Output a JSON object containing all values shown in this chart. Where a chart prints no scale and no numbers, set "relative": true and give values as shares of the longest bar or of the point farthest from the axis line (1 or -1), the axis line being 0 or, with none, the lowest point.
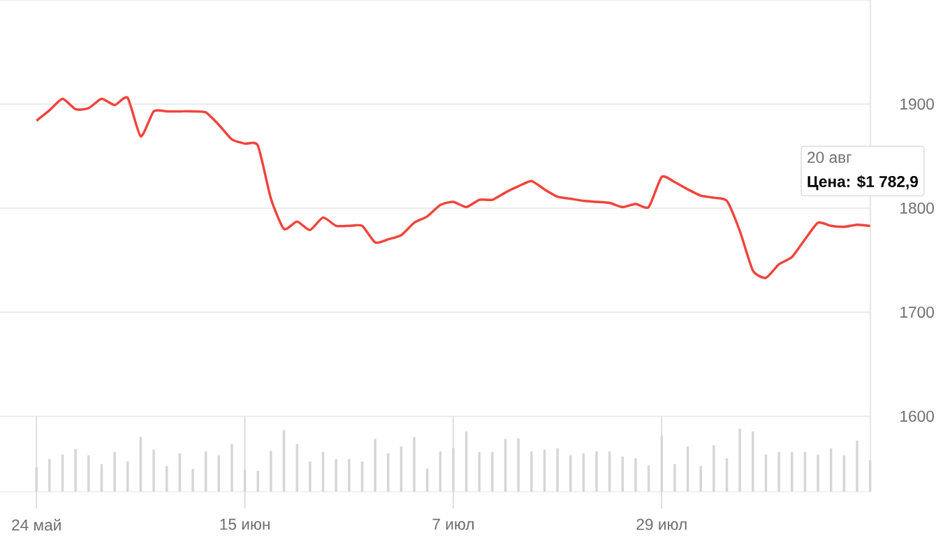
{
  "chart_data": [
    {
      "type": "line",
      "categories": [
        null,
        null,
        null,
        null,
        null,
        null,
        null,
        null,
        null,
        null,
        null,
        null,
        null,
        null,
        null,
        null,
        null,
        null,
        null,
        null,
        null,
        null,
        null,
        null,
        null,
        null,
        null,
        null,
        null,
        null,
        null,
        null,
        null,
        null,
        null,
        null,
        null,
        null,
        null,
        null,
        null,
        null,
        null,
        null,
        null,
        null,
        null,
        null,
        null,
        null,
        null,
        null,
        null,
        null,
        null,
        null,
        null,
        null,
        null,
        null,
        null,
        null,
        null,
        null,
        null
      ],
      "series": [
        {
          "color": "#f0443c",
          "values": [
            1884,
            1894,
            1905,
            1895,
            1896,
            1905,
            1899,
            1906,
            1869,
            1893,
            1893,
            1893,
            1893,
            1892,
            1880,
            1866,
            1862,
            1860,
            1809,
            1780,
            1787,
            1779,
            1791,
            1783,
            1783,
            1783,
            1767,
            1770,
            1774,
            1786,
            1792,
            1803,
            1806,
            1801,
            1808,
            1808,
            1815,
            1821,
            1826,
            1818,
            1811,
            1809,
            1807,
            1806,
            1805,
            1801,
            1804,
            1801,
            1830,
            1825,
            1818,
            1812,
            1810,
            1807,
            1778,
            1740,
            1733,
            1746,
            1753,
            1770,
            1786,
            1783,
            1782,
            1784,
            1782.9
          ]
        }
      ],
      "ylim": [
        1600,
        2000
      ],
      "yticks": [
        1600,
        1700,
        1800,
        1900,
        {
          "value": 2000,
          "label": null
        }
      ],
      "grid": "y",
      "tick_labels": "y",
      "line_style": "solid",
      "annotations": [
        "20 авг",
        "Цена: $1 782,9"
      ]
    },
    {
      "type": "bar",
      "categories": [
        "24 май",
        null,
        null,
        null,
        null,
        null,
        null,
        null,
        null,
        null,
        null,
        null,
        null,
        null,
        null,
        null,
        "15 июн",
        null,
        null,
        null,
        null,
        null,
        null,
        null,
        null,
        null,
        null,
        null,
        null,
        null,
        null,
        null,
        "7 июл",
        null,
        null,
        null,
        null,
        null,
        null,
        null,
        null,
        null,
        null,
        null,
        null,
        null,
        null,
        null,
        "29 июл",
        null,
        null,
        null,
        null,
        null,
        null,
        null,
        null,
        null,
        null,
        null,
        null,
        null,
        null,
        null,
        null
      ],
      "relative": true,
      "color": "#d6d6d6",
      "values": [
        0.39,
        0.52,
        0.59,
        0.68,
        0.58,
        0.44,
        0.63,
        0.48,
        0.87,
        0.67,
        0.41,
        0.61,
        0.36,
        0.64,
        0.58,
        0.76,
        0.35,
        0.33,
        0.65,
        0.98,
        0.76,
        0.48,
        0.63,
        0.52,
        0.52,
        0.48,
        0.84,
        0.61,
        0.72,
        0.87,
        0.37,
        0.64,
        0.69,
        0.96,
        0.63,
        0.63,
        0.84,
        0.85,
        0.64,
        0.67,
        0.69,
        0.58,
        0.61,
        0.64,
        0.64,
        0.56,
        0.53,
        0.42,
        0.89,
        0.44,
        0.72,
        0.41,
        0.74,
        0.53,
        1,
        0.96,
        0.59,
        0.63,
        0.63,
        0.63,
        0.59,
        0.69,
        0.58,
        0.81,
        0.5
      ],
      "grid": "x",
      "tick_labels": "x"
    }
  ]
}
